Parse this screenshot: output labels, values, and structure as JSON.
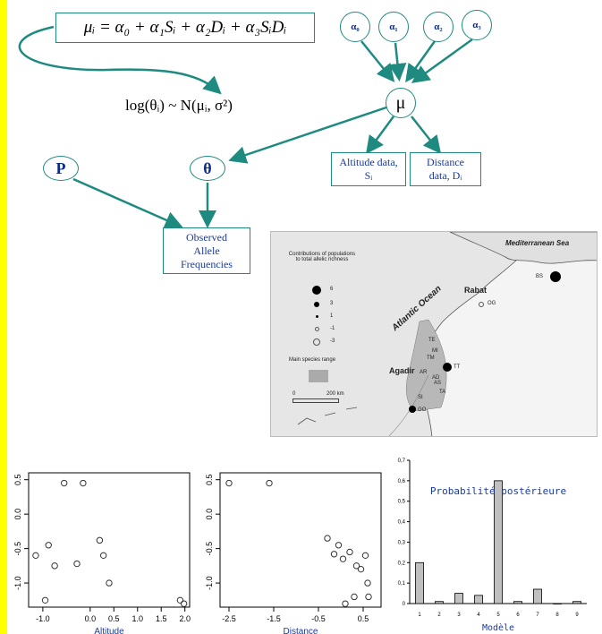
{
  "diagram": {
    "equation": "μᵢ = α₀ + α₁Sᵢ + α₂Dᵢ + α₃SᵢDᵢ",
    "lognormal": "log(θᵢ) ~ N(μᵢ, σ²)",
    "alpha_nodes": [
      "α₀",
      "α₁",
      "α₂",
      "α₃"
    ],
    "mu_node": "μ",
    "p_node": "P",
    "theta_node": "θ",
    "altitude_box": [
      "Altitude data,",
      "Sᵢ"
    ],
    "distance_box": [
      "Distance",
      "data, Dᵢ"
    ],
    "allele_box": [
      "Observed",
      "Allele",
      "Frequencies"
    ],
    "colors": {
      "accent": "#1f8a80",
      "node_text": "#0b2b8a",
      "sidebar": "#ffff00"
    }
  },
  "map": {
    "legend_title": [
      "Contributions of populations",
      "to total allelic richness"
    ],
    "legend_values": [
      "6",
      "3",
      "1",
      "-1",
      "-3"
    ],
    "range_label": "Main species range",
    "scale_labels": [
      "0",
      "200 km"
    ],
    "sea_label": "Mediterranean Sea",
    "ocean_label": "Atlantic Ocean",
    "city_rabat": "Rabat",
    "city_agadir": "Agadir",
    "sites": [
      "BS",
      "OG",
      "TE",
      "MI",
      "TM",
      "AR",
      "AD",
      "AS",
      "TA",
      "TT",
      "SI",
      "GO"
    ]
  },
  "chart_data": [
    {
      "type": "scatter",
      "xlabel": "Altitude",
      "xticks": [
        "-1.0",
        "0.0",
        "0.5",
        "1.0",
        "1.5",
        "2.0"
      ],
      "yticks": [
        "0.5",
        "0.0",
        "-0.5",
        "-1.0"
      ],
      "xlim": [
        -1.3,
        2.1
      ],
      "ylim": [
        -1.35,
        0.6
      ],
      "points": [
        [
          -1.15,
          -0.6
        ],
        [
          -0.95,
          -1.25
        ],
        [
          -0.88,
          -0.45
        ],
        [
          -0.75,
          -0.75
        ],
        [
          -0.55,
          0.45
        ],
        [
          -0.28,
          -0.72
        ],
        [
          -0.15,
          0.45
        ],
        [
          0.2,
          -0.38
        ],
        [
          0.28,
          -0.6
        ],
        [
          0.4,
          -1.0
        ],
        [
          1.9,
          -1.25
        ],
        [
          1.98,
          -1.3
        ]
      ]
    },
    {
      "type": "scatter",
      "xlabel": "Distance",
      "xticks": [
        "-2.5",
        "-1.5",
        "-0.5",
        "0.5"
      ],
      "yticks": [
        "0.5",
        "0.0",
        "-0.5",
        "-1.0"
      ],
      "xlim": [
        -2.7,
        0.9
      ],
      "ylim": [
        -1.35,
        0.6
      ],
      "points": [
        [
          -2.5,
          0.45
        ],
        [
          -1.6,
          0.45
        ],
        [
          -0.3,
          -0.35
        ],
        [
          -0.15,
          -0.58
        ],
        [
          -0.05,
          -0.45
        ],
        [
          0.05,
          -0.65
        ],
        [
          0.2,
          -0.55
        ],
        [
          0.35,
          -0.75
        ],
        [
          0.45,
          -0.8
        ],
        [
          0.55,
          -0.6
        ],
        [
          0.6,
          -1.0
        ],
        [
          0.1,
          -1.3
        ],
        [
          0.3,
          -1.2
        ],
        [
          0.62,
          -1.2
        ]
      ]
    },
    {
      "type": "bar",
      "title": "Probabilité postérieure",
      "xlabel": "Modèle",
      "categories": [
        "1",
        "2",
        "3",
        "4",
        "5",
        "6",
        "7",
        "8",
        "9"
      ],
      "values": [
        0.2,
        0.01,
        0.05,
        0.04,
        0.6,
        0.01,
        0.07,
        0.0,
        0.01
      ],
      "ylim": [
        0,
        0.7
      ],
      "yticks": [
        "0",
        "0,1",
        "0,2",
        "0,3",
        "0,4",
        "0,5",
        "0,6",
        "0,7"
      ]
    }
  ]
}
